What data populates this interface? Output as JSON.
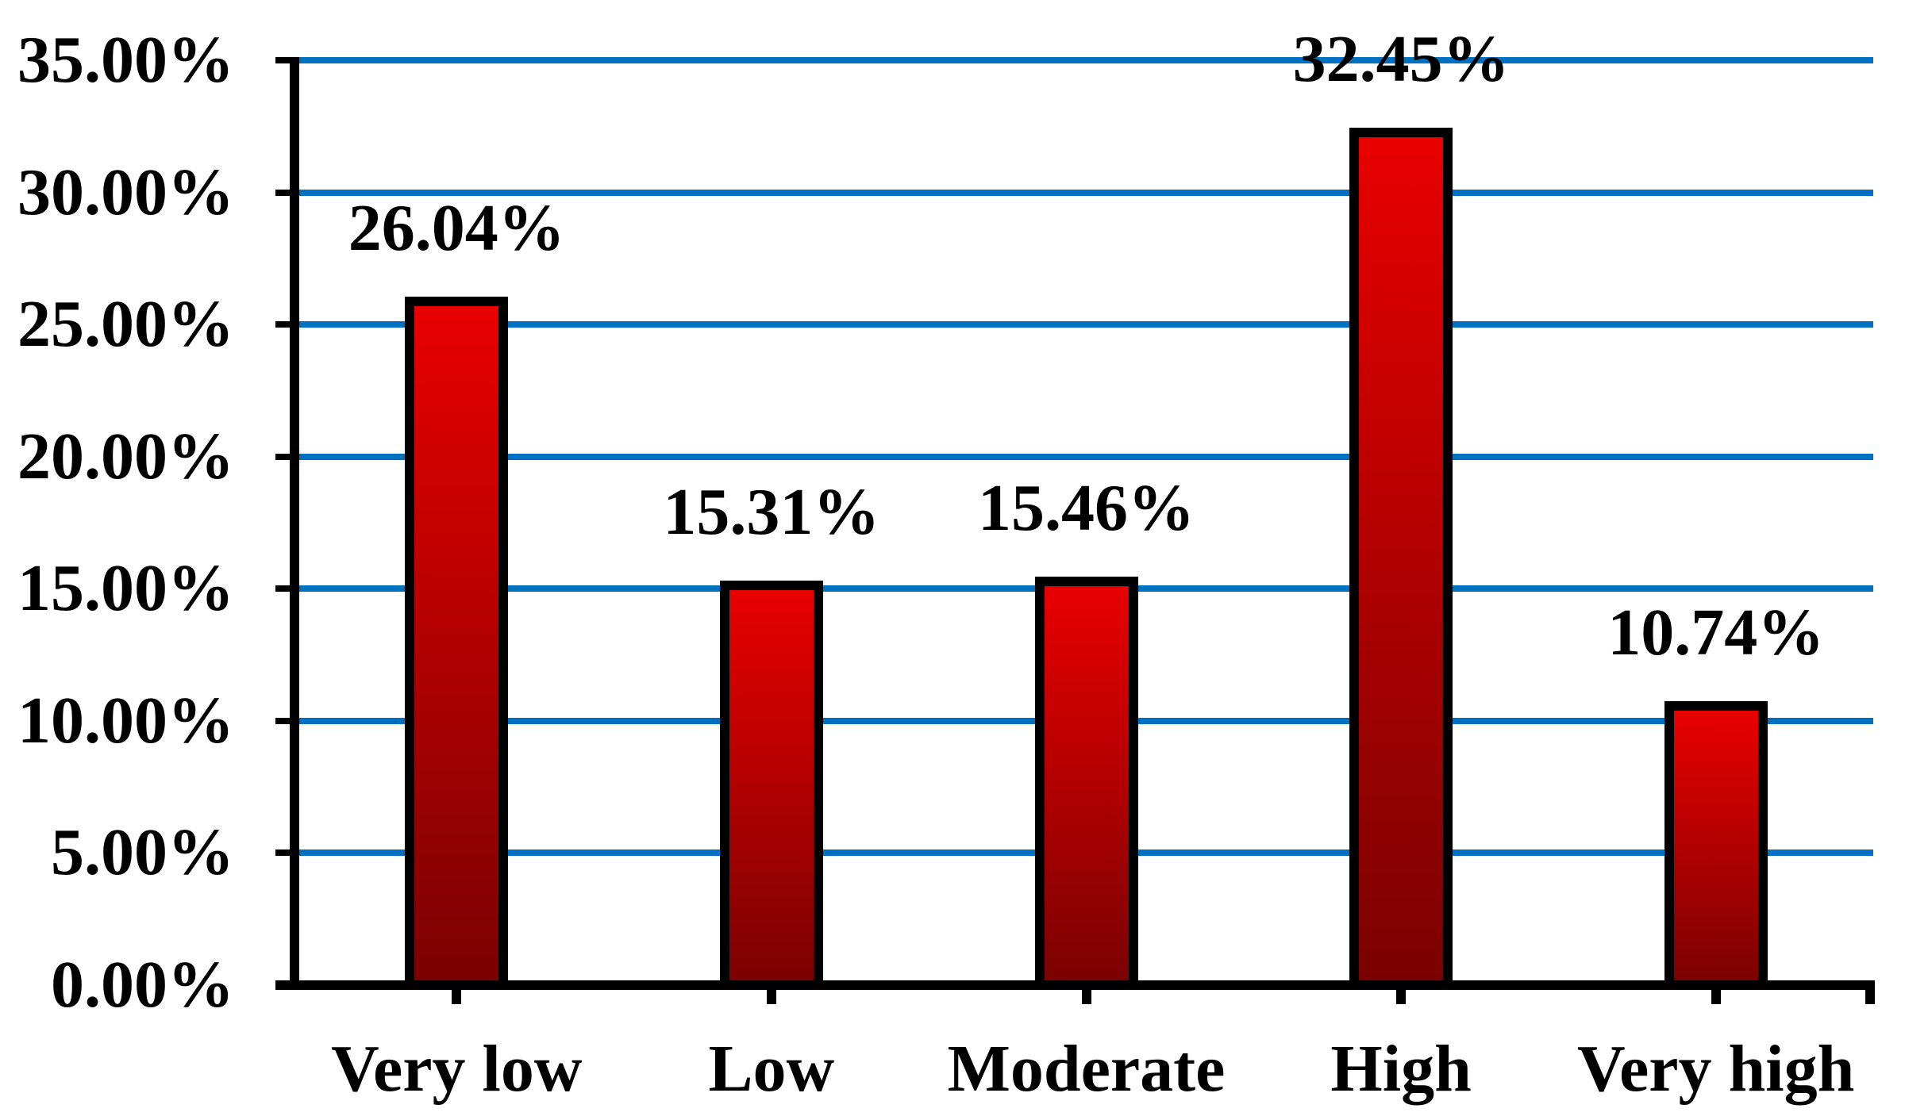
{
  "chart_data": {
    "type": "bar",
    "title": "",
    "xlabel": "",
    "ylabel": "",
    "categories": [
      "Very low",
      "Low",
      "Moderate",
      "High",
      "Very high"
    ],
    "values": [
      26.04,
      15.31,
      15.46,
      32.45,
      10.74
    ],
    "value_labels": [
      "26.04%",
      "15.31%",
      "15.46%",
      "32.45%",
      "10.74%"
    ],
    "ylim": [
      0,
      35
    ],
    "y_ticks": [
      {
        "value": 35,
        "label": "35.00%"
      },
      {
        "value": 30,
        "label": "30.00%"
      },
      {
        "value": 25,
        "label": "25.00%"
      },
      {
        "value": 20,
        "label": "20.00%"
      },
      {
        "value": 15,
        "label": "15.00%"
      },
      {
        "value": 10,
        "label": "10.00%"
      },
      {
        "value": 5,
        "label": "5.00%"
      },
      {
        "value": 0,
        "label": "0.00%"
      }
    ],
    "grid": "horizontal",
    "legend": "none",
    "colors": {
      "gridline": "#0070c0",
      "bar_top": "#e80000",
      "bar_bottom": "#7a0101",
      "bar_border": "#000000",
      "axis": "#000000",
      "text": "#000000",
      "background": "#ffffff"
    }
  }
}
